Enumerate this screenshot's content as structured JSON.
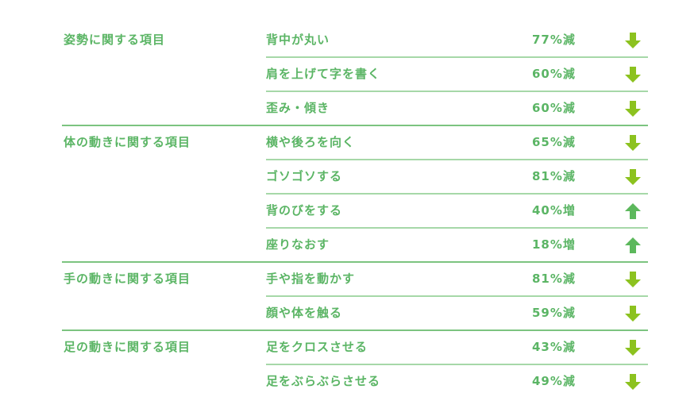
{
  "colors": {
    "text": "#5bb565",
    "down": "#8cc21f",
    "up": "#5cb85c"
  },
  "groups": [
    {
      "category": "姿勢に関する項目",
      "items": [
        {
          "label": "背中が丸い",
          "value": "77%減",
          "direction": "down"
        },
        {
          "label": "肩を上げて字を書く",
          "value": "60%減",
          "direction": "down"
        },
        {
          "label": "歪み・傾き",
          "value": "60%減",
          "direction": "down"
        }
      ]
    },
    {
      "category": "体の動きに関する項目",
      "items": [
        {
          "label": "横や後ろを向く",
          "value": "65%減",
          "direction": "down"
        },
        {
          "label": "ゴソゴソする",
          "value": "81%減",
          "direction": "down"
        },
        {
          "label": "背のびをする",
          "value": "40%増",
          "direction": "up"
        },
        {
          "label": "座りなおす",
          "value": "18%増",
          "direction": "up"
        }
      ]
    },
    {
      "category": "手の動きに関する項目",
      "items": [
        {
          "label": "手や指を動かす",
          "value": "81%減",
          "direction": "down"
        },
        {
          "label": "顔や体を触る",
          "value": "59%減",
          "direction": "down"
        }
      ]
    },
    {
      "category": "足の動きに関する項目",
      "items": [
        {
          "label": "足をクロスさせる",
          "value": "43%減",
          "direction": "down"
        },
        {
          "label": "足をぶらぶらさせる",
          "value": "49%減",
          "direction": "down"
        }
      ]
    }
  ]
}
